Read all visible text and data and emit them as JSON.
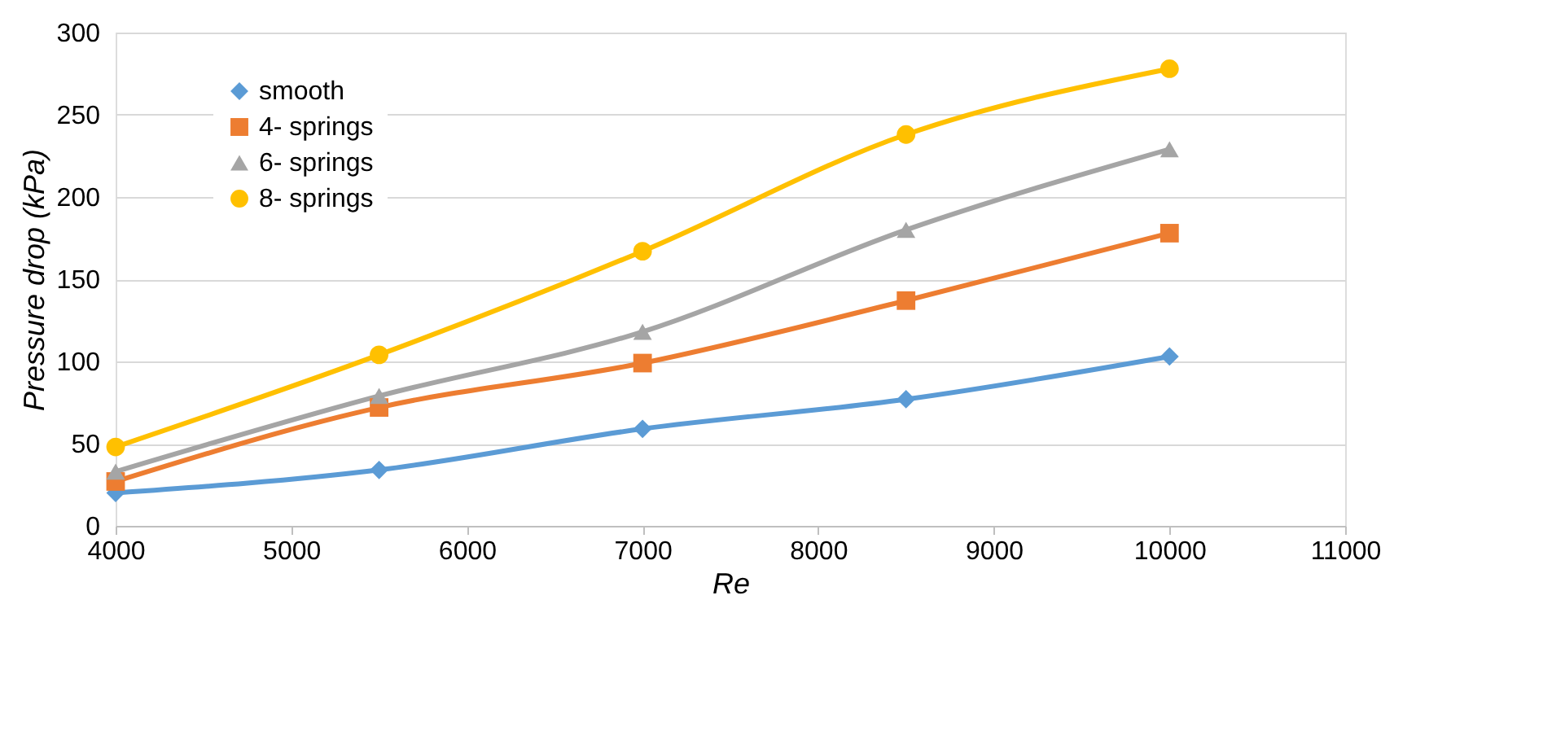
{
  "chart_data": {
    "type": "line",
    "xlabel": "Re",
    "ylabel": "Pressure drop (kPa)",
    "x": [
      4000,
      5500,
      7000,
      8500,
      10000
    ],
    "xlim": [
      4000,
      11000
    ],
    "xticks": [
      4000,
      5000,
      6000,
      7000,
      8000,
      9000,
      10000,
      11000
    ],
    "ylim": [
      0,
      300
    ],
    "yticks": [
      0,
      50,
      100,
      150,
      200,
      250,
      300
    ],
    "grid": "y",
    "legend": "top left",
    "line_style": "solid",
    "series": [
      {
        "name": "smooth",
        "color": "#5b9bd5",
        "marker": "diamond",
        "values": [
          20,
          34,
          59,
          77,
          103
        ]
      },
      {
        "name": "4- springs",
        "color": "#ed7d31",
        "marker": "square",
        "values": [
          27,
          72,
          99,
          137,
          178
        ]
      },
      {
        "name": "6- springs",
        "color": "#a5a5a5",
        "marker": "triangle",
        "values": [
          33,
          79,
          118,
          180,
          229
        ]
      },
      {
        "name": "8- springs",
        "color": "#ffc000",
        "marker": "circle",
        "values": [
          48,
          104,
          167,
          238,
          278
        ]
      }
    ]
  }
}
